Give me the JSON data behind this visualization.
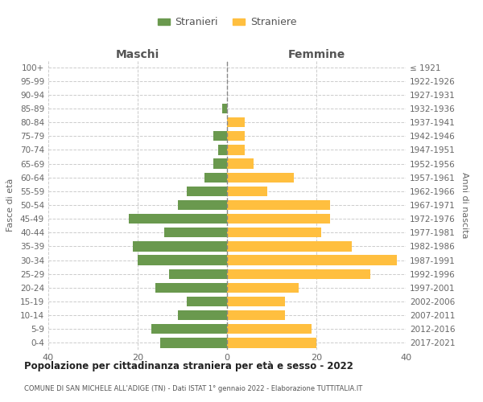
{
  "age_groups": [
    "100+",
    "95-99",
    "90-94",
    "85-89",
    "80-84",
    "75-79",
    "70-74",
    "65-69",
    "60-64",
    "55-59",
    "50-54",
    "45-49",
    "40-44",
    "35-39",
    "30-34",
    "25-29",
    "20-24",
    "15-19",
    "10-14",
    "5-9",
    "0-4"
  ],
  "birth_years": [
    "≤ 1921",
    "1922-1926",
    "1927-1931",
    "1932-1936",
    "1937-1941",
    "1942-1946",
    "1947-1951",
    "1952-1956",
    "1957-1961",
    "1962-1966",
    "1967-1971",
    "1972-1976",
    "1977-1981",
    "1982-1986",
    "1987-1991",
    "1992-1996",
    "1997-2001",
    "2002-2006",
    "2007-2011",
    "2012-2016",
    "2017-2021"
  ],
  "maschi": [
    0,
    0,
    0,
    1,
    0,
    3,
    2,
    3,
    5,
    9,
    11,
    22,
    14,
    21,
    20,
    13,
    16,
    9,
    11,
    17,
    15
  ],
  "femmine": [
    0,
    0,
    0,
    0,
    4,
    4,
    4,
    6,
    15,
    9,
    23,
    23,
    21,
    28,
    38,
    32,
    16,
    13,
    13,
    19,
    20
  ],
  "maschi_color": "#6a994e",
  "femmine_color": "#ffbf3f",
  "xlim": 40,
  "title": "Popolazione per cittadinanza straniera per età e sesso - 2022",
  "subtitle": "COMUNE DI SAN MICHELE ALL'ADIGE (TN) - Dati ISTAT 1° gennaio 2022 - Elaborazione TUTTITALIA.IT",
  "ylabel_left": "Fasce di età",
  "ylabel_right": "Anni di nascita",
  "legend_maschi": "Stranieri",
  "legend_femmine": "Straniere",
  "maschi_header": "Maschi",
  "femmine_header": "Femmine",
  "bg_color": "#ffffff",
  "grid_color": "#cccccc"
}
